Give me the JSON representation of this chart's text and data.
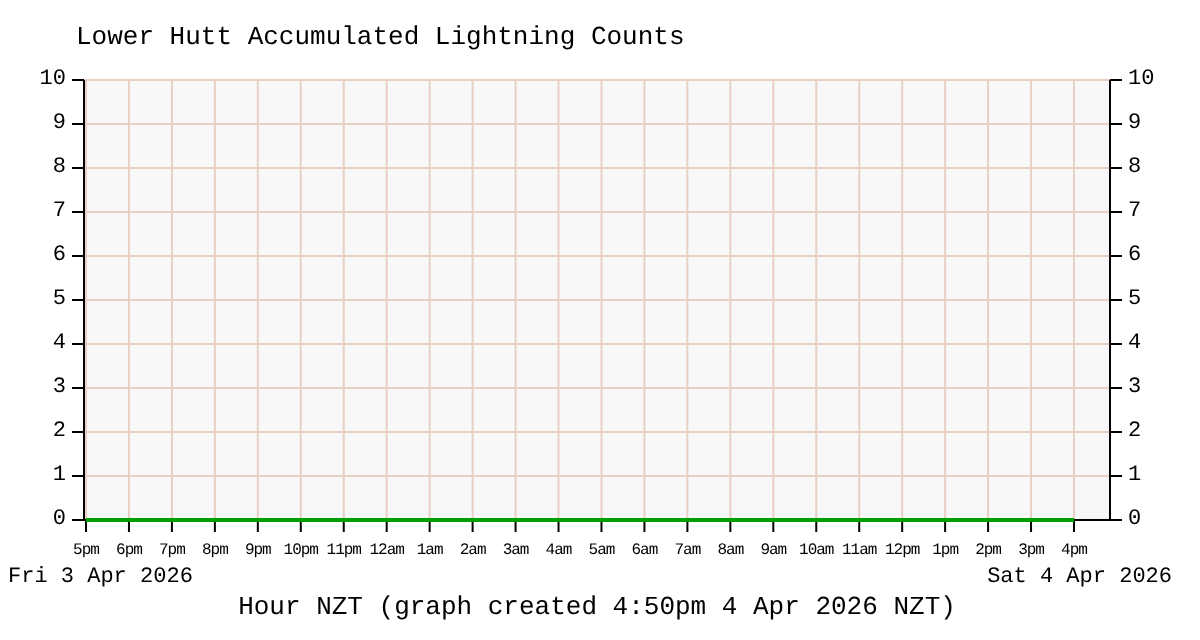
{
  "chart_data": {
    "type": "line",
    "title": "Lower Hutt Accumulated Lightning Counts",
    "xlabel": "Hour NZT (graph created 4:50pm 4 Apr 2026 NZT)",
    "annotations": [
      "Fri 3 Apr 2026",
      "Sat 4 Apr 2026"
    ],
    "categories": [
      "5pm",
      "6pm",
      "7pm",
      "8pm",
      "9pm",
      "10pm",
      "11pm",
      "12am",
      "1am",
      "2am",
      "3am",
      "4am",
      "5am",
      "6am",
      "7am",
      "8am",
      "9am",
      "10am",
      "11am",
      "12pm",
      "1pm",
      "2pm",
      "3pm",
      "4pm"
    ],
    "series": [
      {
        "color": "#00a000",
        "values": [
          0,
          0,
          0,
          0,
          0,
          0,
          0,
          0,
          0,
          0,
          0,
          0,
          0,
          0,
          0,
          0,
          0,
          0,
          0,
          0,
          0,
          0,
          0,
          0
        ]
      }
    ],
    "ylim": [
      0,
      10
    ],
    "yticks": [
      0,
      1,
      2,
      3,
      4,
      5,
      6,
      7,
      8,
      9,
      10
    ],
    "y2lim": [
      0,
      10
    ],
    "y2ticks": [
      0,
      1,
      2,
      3,
      4,
      5,
      6,
      7,
      8,
      9,
      10
    ],
    "grid": true,
    "marker": "none",
    "line_style": "solid"
  }
}
